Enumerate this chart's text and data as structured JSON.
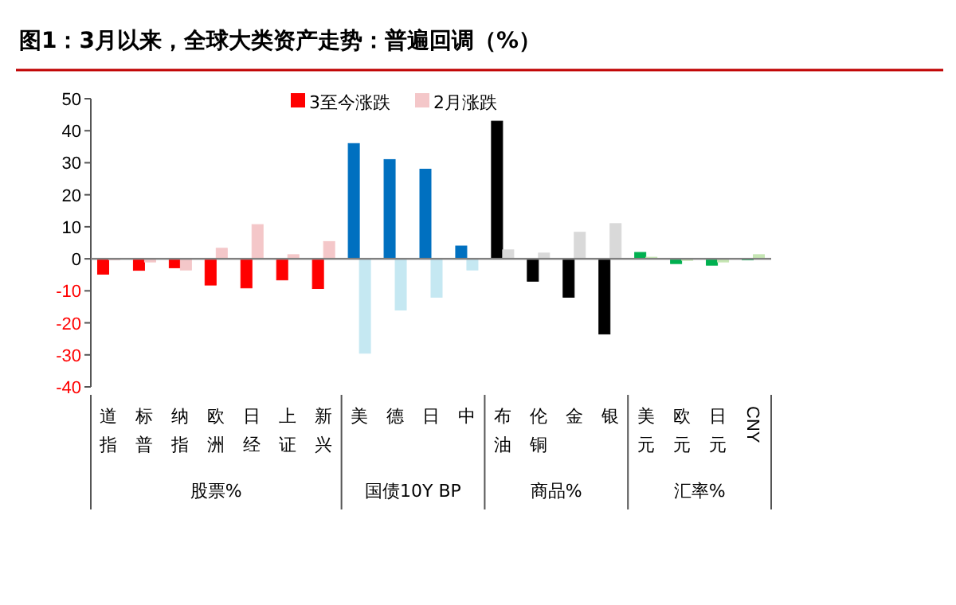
{
  "chart_data": {
    "type": "bar",
    "title": "图1：3月以来，全球大类资产走势：普遍回调（%）",
    "categories": [
      "道指",
      "标普",
      "纳指",
      "欧洲",
      "日经",
      "上证",
      "新兴",
      "美",
      "德",
      "日",
      "中",
      "布油",
      "伦铜",
      "金",
      "银",
      "美元",
      "欧元",
      "日元",
      "CNY"
    ],
    "series": [
      {
        "name": "3至今涨跌",
        "color": "#ff0000",
        "colors": [
          "#ff0000",
          "#ff0000",
          "#ff0000",
          "#ff0000",
          "#ff0000",
          "#ff0000",
          "#ff0000",
          "#0070c0",
          "#0070c0",
          "#0070c0",
          "#0070c0",
          "#000000",
          "#000000",
          "#000000",
          "#000000",
          "#00b050",
          "#00b050",
          "#00b050",
          "#00b050"
        ],
        "values": [
          -4.8,
          -3.6,
          -2.8,
          -8.2,
          -9.1,
          -6.6,
          -9.3,
          36,
          31,
          28,
          4,
          43,
          -7,
          -12,
          -23.5,
          2,
          -1.5,
          -2,
          0
        ]
      },
      {
        "name": "2月涨跌",
        "color": "#f4c7c9",
        "colors": [
          "#f4c7c9",
          "#f4c7c9",
          "#f4c7c9",
          "#f4c7c9",
          "#f4c7c9",
          "#f4c7c9",
          "#f4c7c9",
          "#c5e8f2",
          "#c5e8f2",
          "#c5e8f2",
          "#c5e8f2",
          "#d9d9d9",
          "#d9d9d9",
          "#d9d9d9",
          "#d9d9d9",
          "#c6e6b4",
          "#c6e6b4",
          "#c6e6b4",
          "#c6e6b4"
        ],
        "values": [
          0,
          -1,
          -3.5,
          3.3,
          10.7,
          1.3,
          5.4,
          -29.5,
          -16,
          -12,
          -3.5,
          2.8,
          1.8,
          8.3,
          11,
          0.5,
          -0.5,
          -1,
          1.3
        ]
      }
    ],
    "annotations": [
      "股票%",
      "国债10Y BP",
      "商品%",
      "汇率%"
    ],
    "ylim": [
      -40,
      50
    ],
    "yticks": [
      -40,
      -30,
      -20,
      -10,
      0,
      10,
      20,
      30,
      40,
      50
    ],
    "legend": "top",
    "grid": false
  }
}
